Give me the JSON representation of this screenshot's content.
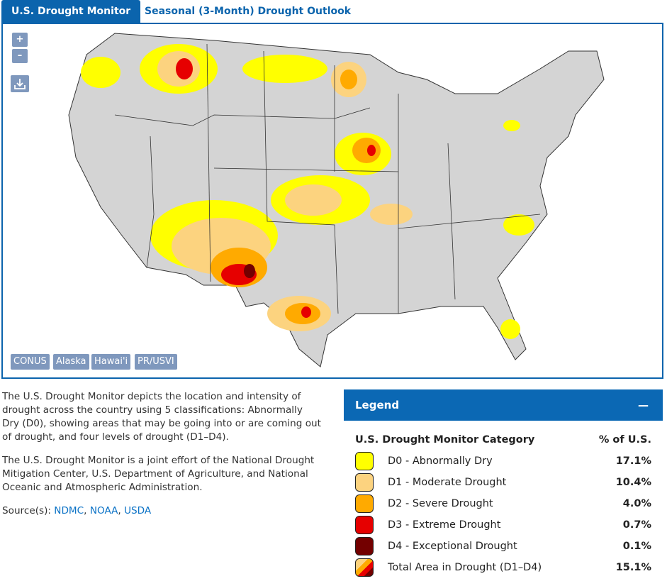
{
  "tabs": [
    "U.S. Drought Monitor",
    "Seasonal (3-Month) Drought Outlook"
  ],
  "map": {
    "zoom_in": "+",
    "zoom_out": "–",
    "regions": [
      "CONUS",
      "Alaska",
      "Hawai'i",
      "PR/USVI"
    ]
  },
  "description": [
    "The U.S. Drought Monitor depicts the location and intensity of drought across the country using 5 classifications: Abnormally Dry (D0), showing areas that may be going into or are coming out of drought, and four levels of drought (D1–D4).",
    "The U.S. Drought Monitor is a joint effort of the National Drought Mitigation Center, U.S. Department of Agriculture, and National Oceanic and Atmospheric Administration."
  ],
  "source": {
    "label": "Source(s):",
    "links": [
      "NDMC",
      "NOAA",
      "USDA"
    ],
    "separator": ","
  },
  "legend": {
    "title": "Legend",
    "collapse": "—",
    "header": [
      "U.S. Drought Monitor Category",
      "% of U.S."
    ],
    "rows": [
      [
        "D0 - Abnormally Dry",
        "17.1%"
      ],
      [
        "D1 - Moderate Drought",
        "10.4%"
      ],
      [
        "D2 - Severe Drought",
        "4.0%"
      ],
      [
        "D3 - Extreme Drought",
        "0.7%"
      ],
      [
        "D4 - Exceptional Drought",
        "0.1%"
      ],
      [
        "Total Area in Drought (D1–D4)",
        "15.1%"
      ]
    ]
  }
}
